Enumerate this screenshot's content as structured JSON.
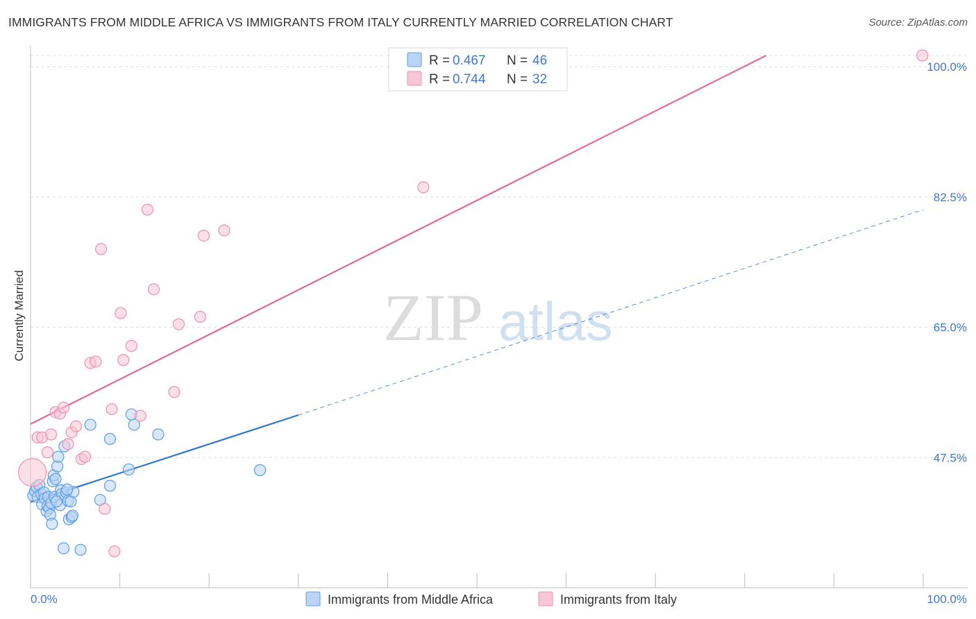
{
  "title": "IMMIGRANTS FROM MIDDLE AFRICA VS IMMIGRANTS FROM ITALY CURRENTLY MARRIED CORRELATION CHART",
  "source": "Source: ZipAtlas.com",
  "watermark": {
    "zip": "ZIP",
    "atlas": "atlas"
  },
  "colors": {
    "blue": "#5b9ce6",
    "blue_fill": "#b9d4f4",
    "blue_line": "#2f73d0",
    "pink": "#ee8fb0",
    "pink_fill": "#f8c6d6",
    "pink_line": "#e26b92",
    "axis_text": "#3f78c8"
  },
  "legend": {
    "r_label": "R = ",
    "n_label": "N = ",
    "rows": [
      {
        "r": "0.467",
        "n": "46",
        "color": "blue"
      },
      {
        "r": "0.744",
        "n": "32",
        "color": "pink"
      }
    ]
  },
  "chart_data": {
    "type": "scatter",
    "title": "IMMIGRANTS FROM MIDDLE AFRICA VS IMMIGRANTS FROM ITALY CURRENTLY MARRIED CORRELATION CHART",
    "xlabel": "",
    "ylabel": "Currently Married",
    "xlim": [
      0,
      100
    ],
    "ylim": [
      30,
      101.5
    ],
    "x_tick_labels": [
      "0.0%",
      "100.0%"
    ],
    "y_ticks": [
      47.5,
      65.0,
      82.5,
      100.0
    ],
    "y_tick_labels": [
      "47.5%",
      "65.0%",
      "82.5%",
      "100.0%"
    ],
    "grid": true,
    "series": [
      {
        "name": "Immigrants from Middle Africa",
        "color": "blue",
        "r": 0.467,
        "n": 46,
        "trend": {
          "x0": 0,
          "y0": 41.5,
          "x1": 30,
          "y1": 53.2,
          "dash_to_x": 100,
          "dash_to_y": 80.8
        },
        "points": [
          [
            0.3,
            42.4
          ],
          [
            0.5,
            43.0
          ],
          [
            0.7,
            43.5
          ],
          [
            0.8,
            42.2
          ],
          [
            1.0,
            43.8
          ],
          [
            1.2,
            42.6
          ],
          [
            1.3,
            41.2
          ],
          [
            1.5,
            42.8
          ],
          [
            1.6,
            42.0
          ],
          [
            1.8,
            40.3
          ],
          [
            1.9,
            41.0
          ],
          [
            2.0,
            42.2
          ],
          [
            2.1,
            40.7
          ],
          [
            2.2,
            39.8
          ],
          [
            2.3,
            41.4
          ],
          [
            2.4,
            38.6
          ],
          [
            2.5,
            44.3
          ],
          [
            2.6,
            45.1
          ],
          [
            2.7,
            42.2
          ],
          [
            2.8,
            44.6
          ],
          [
            3.0,
            46.3
          ],
          [
            3.1,
            47.6
          ],
          [
            3.3,
            41.1
          ],
          [
            3.4,
            43.1
          ],
          [
            3.5,
            42.6
          ],
          [
            3.7,
            35.3
          ],
          [
            3.8,
            49.0
          ],
          [
            4.0,
            42.8
          ],
          [
            4.2,
            41.7
          ],
          [
            4.3,
            39.2
          ],
          [
            4.5,
            41.6
          ],
          [
            4.6,
            39.5
          ],
          [
            4.7,
            39.7
          ],
          [
            4.8,
            42.9
          ],
          [
            5.6,
            35.1
          ],
          [
            6.7,
            51.9
          ],
          [
            7.8,
            41.8
          ],
          [
            8.9,
            43.7
          ],
          [
            8.9,
            50.0
          ],
          [
            11.0,
            45.9
          ],
          [
            11.3,
            53.3
          ],
          [
            11.6,
            51.9
          ],
          [
            14.3,
            50.6
          ],
          [
            25.7,
            45.8
          ],
          [
            4.1,
            43.2
          ],
          [
            2.9,
            41.6
          ]
        ]
      },
      {
        "name": "Immigrants from Italy",
        "color": "pink",
        "r": 0.744,
        "n": 32,
        "trend": {
          "x0": 0,
          "y0": 52.0,
          "x1": 82.4,
          "y1": 101.5
        },
        "points": [
          [
            0.2,
            45.5
          ],
          [
            0.8,
            50.2
          ],
          [
            1.3,
            50.2
          ],
          [
            1.9,
            48.2
          ],
          [
            2.3,
            50.6
          ],
          [
            2.8,
            53.6
          ],
          [
            3.3,
            53.4
          ],
          [
            3.7,
            54.2
          ],
          [
            4.2,
            49.3
          ],
          [
            4.6,
            50.9
          ],
          [
            5.1,
            51.7
          ],
          [
            5.7,
            47.3
          ],
          [
            6.1,
            47.6
          ],
          [
            6.7,
            60.2
          ],
          [
            7.3,
            60.4
          ],
          [
            7.9,
            75.5
          ],
          [
            8.3,
            40.6
          ],
          [
            9.1,
            54.0
          ],
          [
            9.4,
            34.9
          ],
          [
            10.1,
            66.9
          ],
          [
            10.4,
            60.6
          ],
          [
            11.3,
            62.5
          ],
          [
            12.3,
            53.1
          ],
          [
            13.1,
            80.8
          ],
          [
            13.8,
            70.1
          ],
          [
            16.1,
            56.3
          ],
          [
            16.6,
            65.4
          ],
          [
            19.0,
            66.4
          ],
          [
            19.4,
            77.3
          ],
          [
            21.7,
            78.0
          ],
          [
            44.0,
            83.8
          ],
          [
            99.9,
            101.5
          ]
        ]
      }
    ]
  }
}
